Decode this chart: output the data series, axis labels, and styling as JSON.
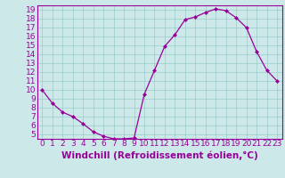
{
  "x": [
    0,
    1,
    2,
    3,
    4,
    5,
    6,
    7,
    8,
    9,
    10,
    11,
    12,
    13,
    14,
    15,
    16,
    17,
    18,
    19,
    20,
    21,
    22,
    23
  ],
  "y": [
    10,
    8.5,
    7.5,
    7.0,
    6.2,
    5.3,
    4.8,
    4.5,
    4.5,
    4.6,
    9.5,
    12.2,
    14.9,
    16.2,
    17.9,
    18.2,
    18.7,
    19.1,
    18.9,
    18.1,
    17.0,
    14.3,
    12.2,
    11.0
  ],
  "line_color": "#990099",
  "marker_color": "#990099",
  "bg_color": "#cce8e8",
  "grid_color": "#99cccc",
  "axis_color": "#990099",
  "xlabel": "Windchill (Refroidissement éolien,°C)",
  "xlim": [
    -0.5,
    23.5
  ],
  "ylim": [
    4.5,
    19.5
  ],
  "yticks": [
    5,
    6,
    7,
    8,
    9,
    10,
    11,
    12,
    13,
    14,
    15,
    16,
    17,
    18,
    19
  ],
  "xticks": [
    0,
    1,
    2,
    3,
    4,
    5,
    6,
    7,
    8,
    9,
    10,
    11,
    12,
    13,
    14,
    15,
    16,
    17,
    18,
    19,
    20,
    21,
    22,
    23
  ],
  "font_size": 6.5,
  "label_font_size": 7.5
}
